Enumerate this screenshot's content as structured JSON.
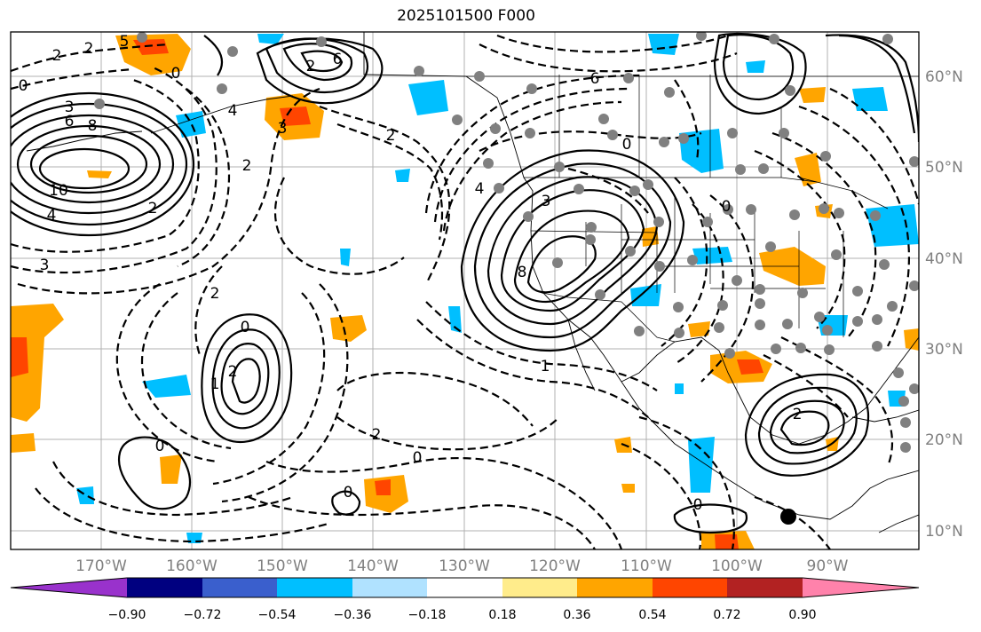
{
  "title": "2025101500 F000",
  "lat_labels": [
    "60°N",
    "50°N",
    "40°N",
    "30°N",
    "20°N",
    "10°N"
  ],
  "lon_labels": [
    "170°W",
    "160°W",
    "150°W",
    "140°W",
    "130°W",
    "120°W",
    "110°W",
    "100°W",
    "90°W"
  ],
  "colorbar": {
    "ticks": [
      "−0.90",
      "−0.72",
      "−0.54",
      "−0.36",
      "−0.18",
      "0.18",
      "0.36",
      "0.54",
      "0.72",
      "0.90"
    ],
    "colors": [
      "#9932cc",
      "#000080",
      "#3a5fcd",
      "#00bfff",
      "#b0e2ff",
      "#ffffff",
      "#ffec8b",
      "#ffa500",
      "#ff4500",
      "#b22222",
      "#ff82ab"
    ]
  },
  "contour_labels": [
    {
      "text": "2"
    },
    {
      "text": "2"
    },
    {
      "text": "5"
    },
    {
      "text": "0"
    },
    {
      "text": "3"
    },
    {
      "text": "6"
    },
    {
      "text": "8"
    },
    {
      "text": "10"
    },
    {
      "text": "4"
    },
    {
      "text": "2"
    },
    {
      "text": "3"
    },
    {
      "text": "6"
    },
    {
      "text": "2"
    },
    {
      "text": "0"
    },
    {
      "text": "4"
    },
    {
      "text": "3"
    },
    {
      "text": "2"
    },
    {
      "text": "1"
    },
    {
      "text": "2"
    },
    {
      "text": "2"
    },
    {
      "text": "0"
    },
    {
      "text": "2"
    },
    {
      "text": "0"
    },
    {
      "text": "0"
    },
    {
      "text": "6"
    },
    {
      "text": "0"
    },
    {
      "text": "3"
    },
    {
      "text": "0"
    },
    {
      "text": "8"
    },
    {
      "text": "1"
    },
    {
      "text": "2"
    },
    {
      "text": "0"
    },
    {
      "text": "4"
    },
    {
      "text": "2"
    },
    {
      "text": "0"
    }
  ],
  "colors": {
    "map_border": "#000000",
    "grid": "#b0b0b0",
    "station_dot": "#808080",
    "marker": "#000000"
  }
}
